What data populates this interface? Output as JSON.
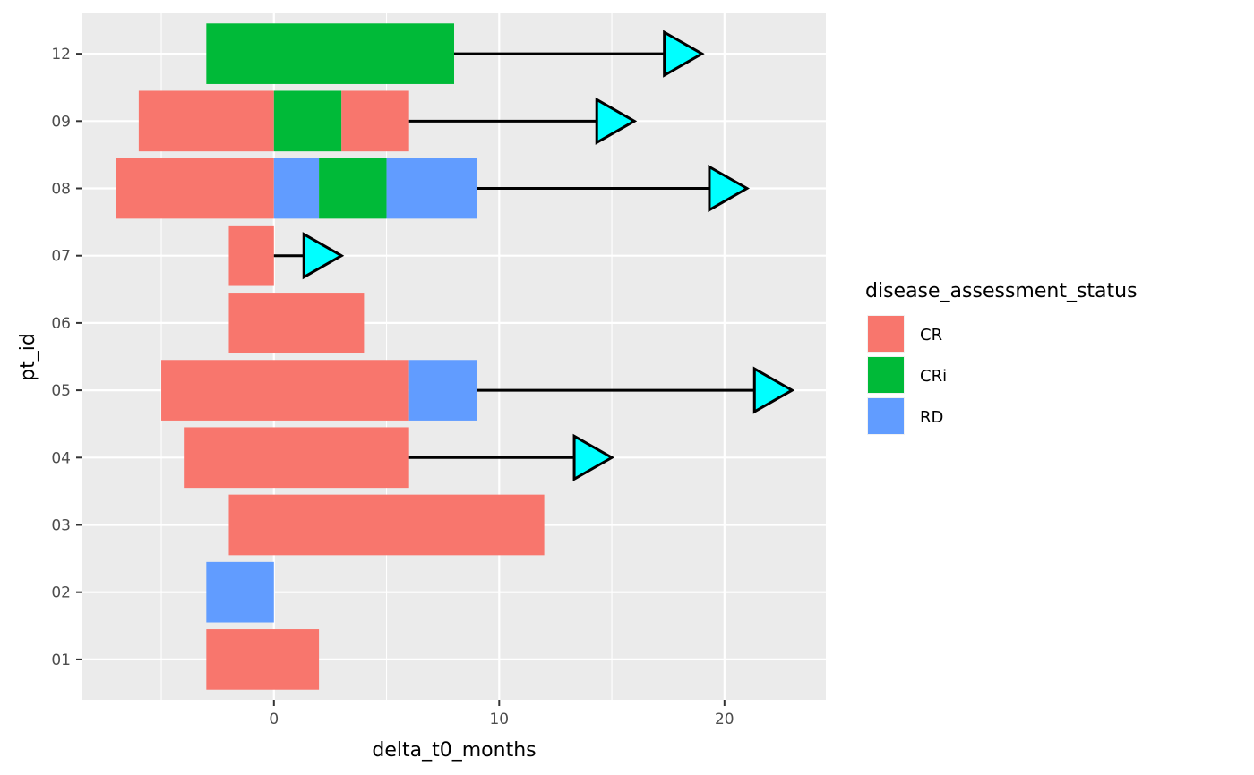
{
  "chart_data": {
    "type": "bar",
    "orientation": "horizontal-stacked-segments",
    "xlabel": "delta_t0_months",
    "ylabel": "pt_id",
    "xlim": [
      -8.5,
      24.5
    ],
    "x_ticks": [
      0,
      10,
      20
    ],
    "categories": [
      "01",
      "02",
      "03",
      "04",
      "05",
      "06",
      "07",
      "08",
      "09",
      "12"
    ],
    "grid": true,
    "legend": {
      "title": "disease_assessment_status",
      "placement": "right",
      "items": [
        {
          "label": "CR",
          "color": "#F8766D"
        },
        {
          "label": "CRi",
          "color": "#00BA38"
        },
        {
          "label": "RD",
          "color": "#619CFF"
        }
      ]
    },
    "segments": [
      {
        "pt_id": "01",
        "start": -3,
        "end": 2,
        "status": "CR"
      },
      {
        "pt_id": "02",
        "start": -3,
        "end": 0,
        "status": "RD"
      },
      {
        "pt_id": "03",
        "start": -2,
        "end": 12,
        "status": "CR"
      },
      {
        "pt_id": "04",
        "start": -4,
        "end": 6,
        "status": "CR"
      },
      {
        "pt_id": "05",
        "start": -5,
        "end": 6,
        "status": "CR"
      },
      {
        "pt_id": "05",
        "start": 6,
        "end": 9,
        "status": "RD"
      },
      {
        "pt_id": "06",
        "start": -2,
        "end": 4,
        "status": "CR"
      },
      {
        "pt_id": "07",
        "start": -2,
        "end": 0,
        "status": "CR"
      },
      {
        "pt_id": "08",
        "start": -7,
        "end": 0,
        "status": "CR"
      },
      {
        "pt_id": "08",
        "start": 0,
        "end": 2,
        "status": "RD"
      },
      {
        "pt_id": "08",
        "start": 2,
        "end": 5,
        "status": "CRi"
      },
      {
        "pt_id": "08",
        "start": 5,
        "end": 9,
        "status": "RD"
      },
      {
        "pt_id": "09",
        "start": -6,
        "end": 0,
        "status": "CR"
      },
      {
        "pt_id": "09",
        "start": 0,
        "end": 3,
        "status": "CRi"
      },
      {
        "pt_id": "09",
        "start": 3,
        "end": 6,
        "status": "CR"
      },
      {
        "pt_id": "12",
        "start": -3,
        "end": 8,
        "status": "CRi"
      }
    ],
    "arrows": [
      {
        "pt_id": "04",
        "start": 6,
        "end": 15
      },
      {
        "pt_id": "05",
        "start": 9,
        "end": 23
      },
      {
        "pt_id": "07",
        "start": 0,
        "end": 3
      },
      {
        "pt_id": "08",
        "start": 9,
        "end": 21
      },
      {
        "pt_id": "09",
        "start": 6,
        "end": 16
      },
      {
        "pt_id": "12",
        "start": 8,
        "end": 19
      }
    ],
    "colors": {
      "panel_background": "#EBEBEB",
      "grid": "#FFFFFF",
      "arrow_line": "#000000",
      "arrow_head": "#00FFFF"
    }
  }
}
